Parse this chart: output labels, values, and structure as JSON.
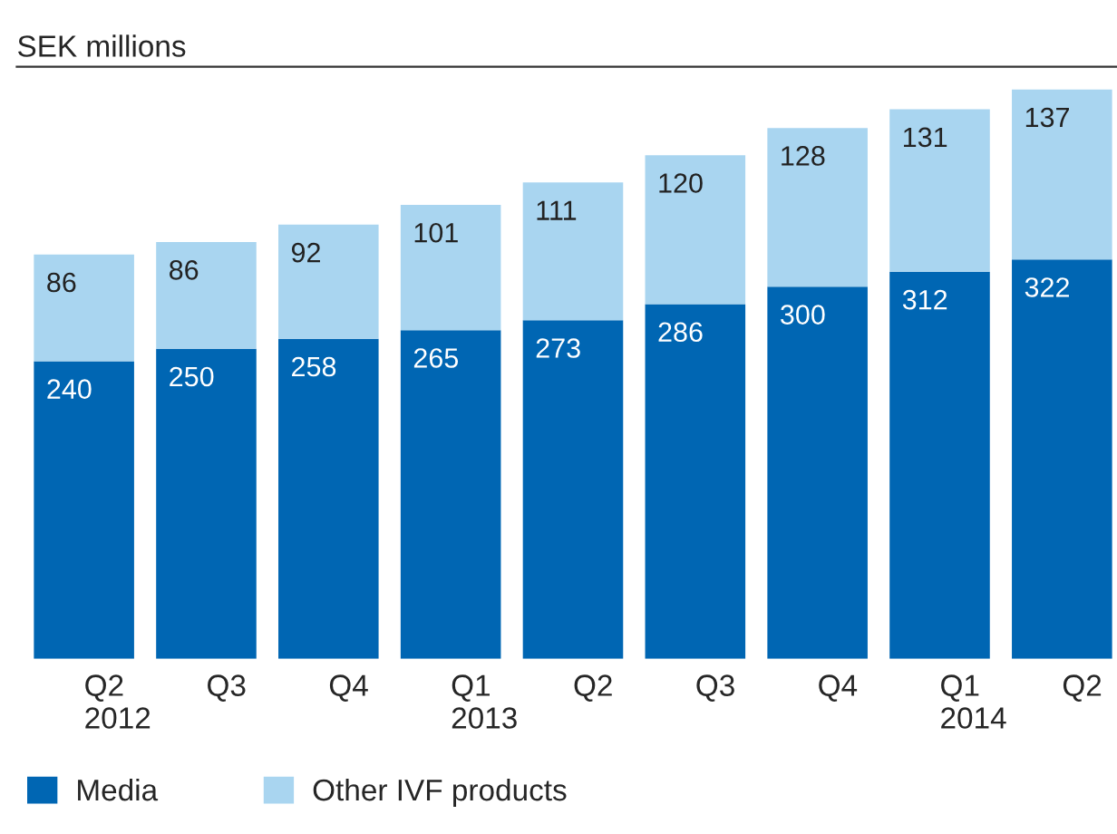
{
  "chart_data": {
    "type": "bar",
    "title": "SEK millions",
    "stacked": true,
    "data_labels": true,
    "legend": "bottom left",
    "categories": [
      "Q2\n2012",
      "Q3",
      "Q4",
      "Q1\n2013",
      "Q2",
      "Q3",
      "Q4",
      "Q1\n2014",
      "Q2"
    ],
    "series": [
      {
        "name": "Media",
        "color": "#0066b3",
        "values": [
          240,
          250,
          258,
          265,
          273,
          286,
          300,
          312,
          322
        ]
      },
      {
        "name": "Other IVF products",
        "color": "#a9d5f0",
        "values": [
          86,
          86,
          92,
          101,
          111,
          120,
          128,
          131,
          137
        ]
      }
    ]
  }
}
